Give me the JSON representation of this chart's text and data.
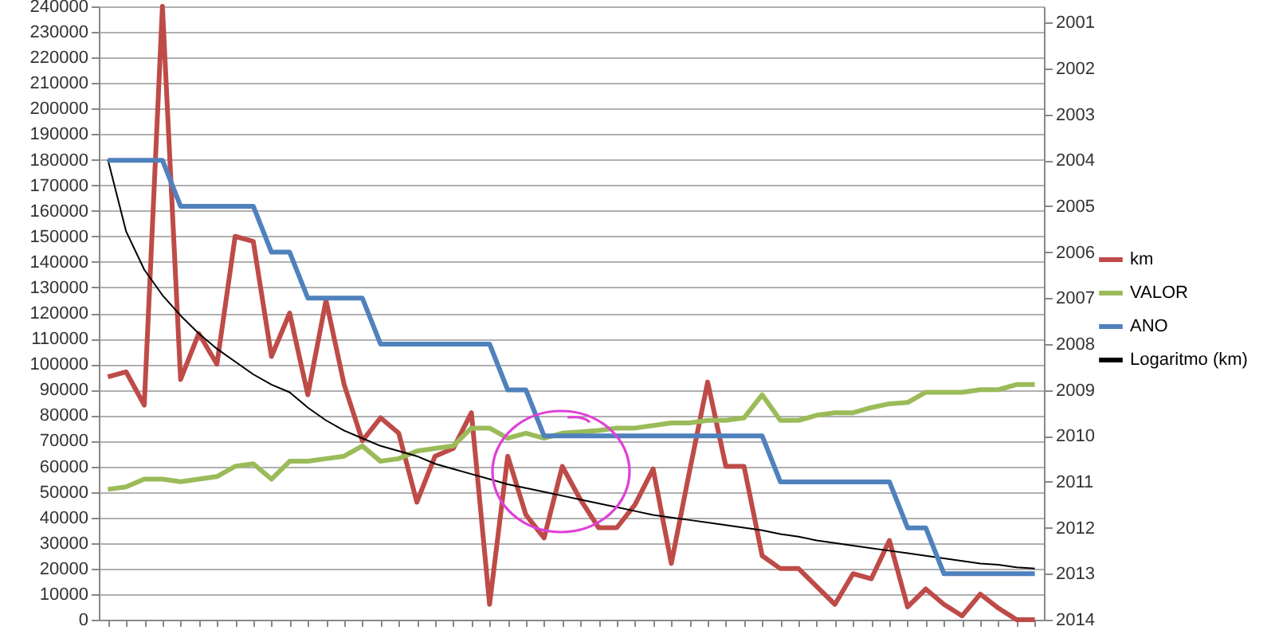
{
  "chart_data": {
    "type": "line",
    "categories": [
      null,
      null,
      null,
      null,
      null,
      null,
      null,
      null,
      null,
      null,
      null,
      null,
      null,
      null,
      null,
      null,
      null,
      null,
      null,
      null,
      null,
      null,
      null,
      null,
      null,
      null,
      null,
      null,
      null,
      null,
      null,
      null,
      null,
      null,
      null,
      null,
      null,
      null,
      null,
      null,
      null,
      null,
      null,
      null,
      null,
      null,
      null,
      null,
      null,
      null,
      null,
      null
    ],
    "series": [
      {
        "name": "km",
        "color": "#be4b48",
        "values": [
          95000,
          97000,
          84000,
          240000,
          94000,
          112000,
          100000,
          150000,
          148000,
          103000,
          120000,
          88000,
          125000,
          92000,
          70000,
          79000,
          73000,
          46000,
          64000,
          67000,
          81000,
          6000,
          64000,
          41000,
          32000,
          60000,
          47000,
          36000,
          36000,
          45000,
          59000,
          22000,
          58000,
          93000,
          60000,
          60000,
          25000,
          20000,
          20000,
          13000,
          6000,
          18000,
          16000,
          31000,
          5000,
          12000,
          6000,
          1500,
          10000,
          4500,
          0,
          0
        ]
      },
      {
        "name": "VALOR",
        "color": "#9bbb59",
        "values": [
          51000,
          52000,
          55000,
          55000,
          54000,
          55000,
          56000,
          60000,
          61000,
          55000,
          62000,
          62000,
          63000,
          64000,
          68000,
          62000,
          63000,
          66000,
          67000,
          68000,
          75000,
          75000,
          71000,
          73000,
          71000,
          73000,
          73500,
          74000,
          75000,
          75000,
          76000,
          77000,
          77000,
          78000,
          78000,
          79000,
          88000,
          78000,
          78000,
          80000,
          81000,
          81000,
          83000,
          84500,
          85000,
          89000,
          89000,
          89000,
          90000,
          90000,
          92000,
          92000
        ]
      },
      {
        "name": "ANO",
        "color": "#4f81bd",
        "axis": "y2",
        "values": [
          2004,
          2004,
          2004,
          2004,
          2005,
          2005,
          2005,
          2005,
          2005,
          2006,
          2006,
          2007,
          2007,
          2007,
          2007,
          2008,
          2008,
          2008,
          2008,
          2008,
          2008,
          2008,
          2009,
          2009,
          2010,
          2010,
          2010,
          2010,
          2010,
          2010,
          2010,
          2010,
          2010,
          2010,
          2010,
          2010,
          2010,
          2011,
          2011,
          2011,
          2011,
          2011,
          2011,
          2011,
          2012,
          2012,
          2013,
          2013,
          2013,
          2013,
          2013,
          2013
        ]
      },
      {
        "name": "Logaritmo (km)",
        "color": "#000000",
        "type": "line",
        "values": [
          180000,
          152000,
          137000,
          127000,
          119000,
          112000,
          106000,
          101000,
          96000,
          92000,
          89000,
          83000,
          78000,
          74000,
          71000,
          68000,
          66000,
          64000,
          61000,
          59000,
          57000,
          55000,
          53000,
          51500,
          50000,
          48500,
          47000,
          45500,
          44000,
          42500,
          41000,
          40000,
          39000,
          38000,
          37000,
          36000,
          35000,
          33500,
          32500,
          31000,
          30000,
          29000,
          28000,
          27000,
          26000,
          25000,
          24000,
          23000,
          22000,
          21500,
          20500,
          20000
        ]
      }
    ],
    "ylim": [
      0,
      240000
    ],
    "yticks": [
      0,
      10000,
      20000,
      30000,
      40000,
      50000,
      60000,
      70000,
      80000,
      90000,
      100000,
      110000,
      120000,
      130000,
      140000,
      150000,
      160000,
      170000,
      180000,
      190000,
      200000,
      210000,
      220000,
      230000,
      240000
    ],
    "y2lim": [
      2014,
      2000.65
    ],
    "y2ticks": [
      2001,
      2002,
      2003,
      2004,
      2005,
      2006,
      2007,
      2008,
      2009,
      2010,
      2011,
      2012,
      2013,
      2014
    ],
    "grid": "y",
    "legend": "right",
    "tick_labels": "y"
  }
}
